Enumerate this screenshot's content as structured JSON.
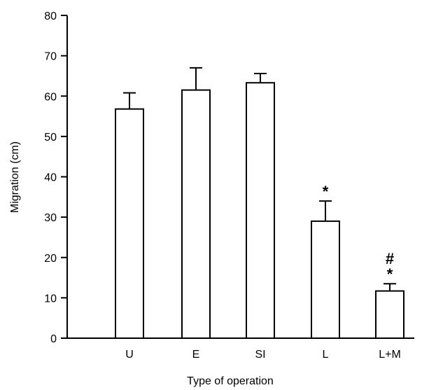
{
  "chart_data": {
    "type": "bar",
    "title": "",
    "xlabel": "Type of operation",
    "ylabel": "Migration (cm)",
    "ylim": [
      0,
      80
    ],
    "y_ticks": [
      0,
      10,
      20,
      30,
      40,
      50,
      60,
      70,
      80
    ],
    "categories": [
      "U",
      "E",
      "SI",
      "L",
      "L+M"
    ],
    "values": [
      56.8,
      61.5,
      63.3,
      29.0,
      11.7
    ],
    "error_bars": [
      4.0,
      5.5,
      2.3,
      5.0,
      1.8
    ],
    "annotations": [
      "",
      "",
      "",
      "*",
      "#\n*"
    ],
    "grid": false,
    "legend": "none",
    "colors": {
      "bar_fill": "#ffffff",
      "bar_stroke": "#000000",
      "axis": "#000000"
    }
  }
}
